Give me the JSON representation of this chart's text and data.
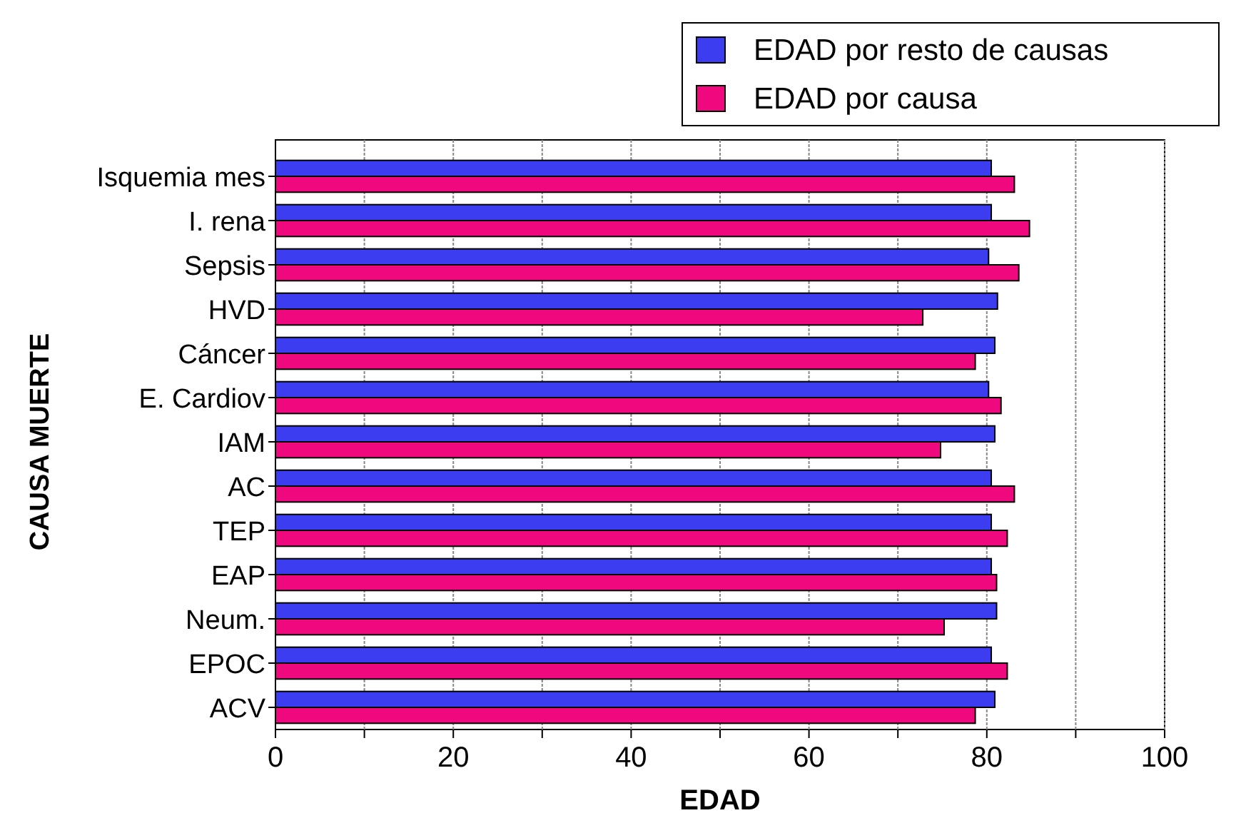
{
  "chart_data": {
    "type": "bar",
    "orientation": "horizontal",
    "xlabel": "EDAD",
    "ylabel": "CAUSA MUERTE",
    "categories": [
      "Isquemia mes",
      "I. rena",
      "Sepsis",
      "HVD",
      "Cáncer",
      "E. Cardiov",
      "IAM",
      "AC",
      "TEP",
      "EAP",
      "Neum.",
      "EPOC",
      "ACV"
    ],
    "series": [
      {
        "name": "EDAD por resto de causas",
        "color": "#3c3cf0",
        "values": [
          80.5,
          80.5,
          80.2,
          81.2,
          80.9,
          80.2,
          80.9,
          80.5,
          80.5,
          80.5,
          81.1,
          80.5,
          80.9
        ]
      },
      {
        "name": "EDAD por causa",
        "color": "#f0087f",
        "values": [
          83.1,
          84.8,
          83.6,
          72.8,
          78.7,
          81.6,
          74.8,
          83.1,
          82.3,
          81.1,
          75.2,
          82.3,
          78.7
        ]
      }
    ],
    "xlim": [
      0,
      100
    ],
    "xticks": [
      0,
      {
        "value": 10,
        "label": null
      },
      20,
      {
        "value": 30,
        "label": null
      },
      40,
      {
        "value": 50,
        "label": null
      },
      60,
      {
        "value": 70,
        "label": null
      },
      80,
      {
        "value": 90,
        "label": null
      },
      100
    ],
    "grid": "x",
    "legend": "top right"
  }
}
